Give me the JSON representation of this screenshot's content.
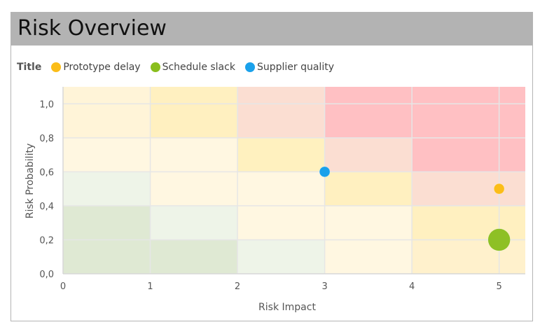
{
  "header": {
    "title": "Risk Overview"
  },
  "legend": {
    "title": "Title",
    "items": [
      {
        "label": "Prototype delay",
        "color": "#fbbd19"
      },
      {
        "label": "Schedule slack",
        "color": "#89be1d"
      },
      {
        "label": "Supplier quality",
        "color": "#1aa1eb"
      }
    ]
  },
  "chart_data": {
    "type": "scatter",
    "xlabel": "Risk Impact",
    "ylabel": "Risk Probability",
    "xlim": [
      0,
      5.3
    ],
    "ylim": [
      0,
      1.1
    ],
    "x_ticks": [
      "0",
      "1",
      "2",
      "3",
      "4",
      "5"
    ],
    "y_ticks": [
      "0,0",
      "0,2",
      "0,4",
      "0,6",
      "0,8",
      "1,0"
    ],
    "grid": true,
    "legend_position": "top-left",
    "background_zones": {
      "x_edges": [
        0,
        1,
        2,
        3,
        4,
        5.3
      ],
      "y_edges": [
        0,
        0.2,
        0.4,
        0.6,
        0.8,
        1.1
      ],
      "rows_bottom_to_top": [
        [
          "#dfe9d3",
          "#dfe9d3",
          "#eef4e8",
          "#fff7e1",
          "#fff1cc"
        ],
        [
          "#dfe9d3",
          "#eef4e8",
          "#fff7e1",
          "#fff7e1",
          "#fff0c0"
        ],
        [
          "#eef4e8",
          "#fff7e1",
          "#fff7e1",
          "#fff0c0",
          "#fbded2"
        ],
        [
          "#fff7e1",
          "#fff7e1",
          "#fff1bf",
          "#fbded2",
          "#ffc0c3"
        ],
        [
          "#fff4d8",
          "#fff0c0",
          "#fbded2",
          "#ffc0c3",
          "#ffc0c3"
        ]
      ]
    },
    "series": [
      {
        "name": "Prototype delay",
        "color": "#fbbd19",
        "points": [
          {
            "x": 5,
            "y": 0.5,
            "size": 1
          }
        ]
      },
      {
        "name": "Schedule slack",
        "color": "#89be1d",
        "points": [
          {
            "x": 5,
            "y": 0.2,
            "size": 4.5
          }
        ]
      },
      {
        "name": "Supplier quality",
        "color": "#1aa1eb",
        "points": [
          {
            "x": 3,
            "y": 0.6,
            "size": 1
          }
        ]
      }
    ]
  }
}
